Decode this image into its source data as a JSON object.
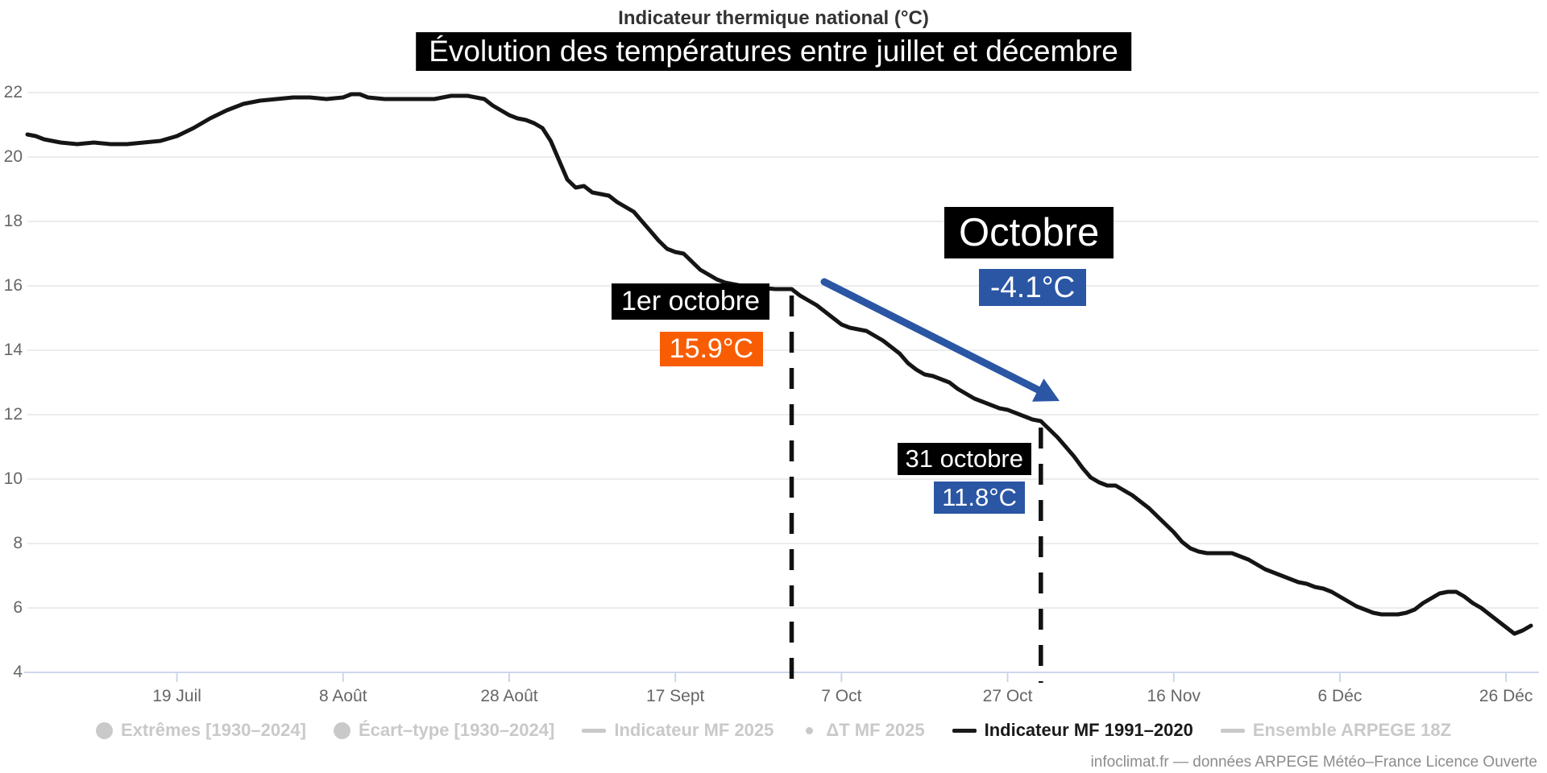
{
  "header": {
    "title": "Indicateur thermique national (°C)",
    "subtitle": "Évolution des températures entre juillet et décembre"
  },
  "credits": "infoclimat.fr — données ARPEGE Météo–France Licence Ouverte",
  "colors": {
    "accent_orange": "#f95d03",
    "accent_blue": "#2a56a4",
    "series_line": "#151515",
    "grid": "#e6e6e6",
    "axis": "#ccd6eb",
    "axis_label": "#666666",
    "legend_inactive": "#c9c9c9",
    "legend_active": "#1a1a1a",
    "annotation_bg": "#000000"
  },
  "annotations": {
    "oct1": {
      "label": "1er octobre",
      "value": "15.9°C",
      "date": "10-1",
      "value_num": 15.9
    },
    "october": {
      "label": "Octobre",
      "value": "-4.1°C",
      "delta_num": -4.1,
      "arrow": true
    },
    "oct31": {
      "label": "31 octobre",
      "value": "11.8°C",
      "date": "10-31",
      "value_num": 11.8
    }
  },
  "legend": {
    "items": [
      {
        "id": "extremes",
        "label": "Extrêmes [1930–2024]",
        "marker": "circle",
        "color": "#c9c9c9",
        "text_color": "#c9c9c9",
        "active": false
      },
      {
        "id": "ecart-type",
        "label": "Écart–type [1930–2024]",
        "marker": "circle",
        "color": "#c9c9c9",
        "text_color": "#c9c9c9",
        "active": false
      },
      {
        "id": "indicateur-mf-2025",
        "label": "Indicateur MF 2025",
        "marker": "line",
        "color": "#c9c9c9",
        "text_color": "#c9c9c9",
        "active": false
      },
      {
        "id": "delta-t-mf-2025",
        "label": "ΔT MF 2025",
        "marker": "dot",
        "color": "#c9c9c9",
        "text_color": "#c9c9c9",
        "active": false
      },
      {
        "id": "indicateur-mf-1991-2020",
        "label": "Indicateur MF 1991–2020",
        "marker": "line",
        "color": "#1a1a1a",
        "text_color": "#1a1a1a",
        "active": true
      },
      {
        "id": "ensemble-arpege-18z",
        "label": "Ensemble ARPEGE 18Z",
        "marker": "line",
        "color": "#c9c9c9",
        "text_color": "#c9c9c9",
        "active": false
      }
    ]
  },
  "chart_data": {
    "type": "line",
    "title": "Indicateur thermique national (°C)",
    "subtitle": "Évolution des températures entre juillet et décembre",
    "ylabel": "",
    "xlabel": "",
    "ylim": [
      4,
      22
    ],
    "yticks": [
      4,
      6,
      8,
      10,
      12,
      14,
      16,
      18,
      20,
      22
    ],
    "xticks": [
      {
        "label": "19 Juil",
        "date": "7-19"
      },
      {
        "label": "8 Août",
        "date": "8-8"
      },
      {
        "label": "28 Août",
        "date": "8-28"
      },
      {
        "label": "17 Sept",
        "date": "9-17"
      },
      {
        "label": "7 Oct",
        "date": "10-7"
      },
      {
        "label": "27 Oct",
        "date": "10-27"
      },
      {
        "label": "16 Nov",
        "date": "11-16"
      },
      {
        "label": "6 Déc",
        "date": "12-6"
      },
      {
        "label": "26 Déc",
        "date": "12-26"
      }
    ],
    "grid": true,
    "legend_position": "bottom",
    "series": [
      {
        "name": "Indicateur MF 1991–2020",
        "color": "#151515",
        "points": [
          [
            "7-1",
            20.7
          ],
          [
            "7-2",
            20.65
          ],
          [
            "7-3",
            20.55
          ],
          [
            "7-5",
            20.45
          ],
          [
            "7-7",
            20.4
          ],
          [
            "7-9",
            20.45
          ],
          [
            "7-11",
            20.4
          ],
          [
            "7-13",
            20.4
          ],
          [
            "7-15",
            20.45
          ],
          [
            "7-17",
            20.5
          ],
          [
            "7-19",
            20.65
          ],
          [
            "7-21",
            20.9
          ],
          [
            "7-23",
            21.2
          ],
          [
            "7-25",
            21.45
          ],
          [
            "7-27",
            21.65
          ],
          [
            "7-29",
            21.75
          ],
          [
            "7-31",
            21.8
          ],
          [
            "8-2",
            21.85
          ],
          [
            "8-4",
            21.85
          ],
          [
            "8-6",
            21.8
          ],
          [
            "8-8",
            21.85
          ],
          [
            "8-9",
            21.95
          ],
          [
            "8-10",
            21.95
          ],
          [
            "8-11",
            21.85
          ],
          [
            "8-13",
            21.8
          ],
          [
            "8-15",
            21.8
          ],
          [
            "8-17",
            21.8
          ],
          [
            "8-19",
            21.8
          ],
          [
            "8-21",
            21.9
          ],
          [
            "8-23",
            21.9
          ],
          [
            "8-24",
            21.85
          ],
          [
            "8-25",
            21.8
          ],
          [
            "8-26",
            21.6
          ],
          [
            "8-27",
            21.45
          ],
          [
            "8-28",
            21.3
          ],
          [
            "8-29",
            21.2
          ],
          [
            "8-30",
            21.15
          ],
          [
            "8-31",
            21.05
          ],
          [
            "9-1",
            20.9
          ],
          [
            "9-2",
            20.5
          ],
          [
            "9-3",
            19.9
          ],
          [
            "9-4",
            19.3
          ],
          [
            "9-5",
            19.05
          ],
          [
            "9-6",
            19.1
          ],
          [
            "9-7",
            18.9
          ],
          [
            "9-8",
            18.85
          ],
          [
            "9-9",
            18.8
          ],
          [
            "9-10",
            18.6
          ],
          [
            "9-11",
            18.45
          ],
          [
            "9-12",
            18.3
          ],
          [
            "9-13",
            18.0
          ],
          [
            "9-14",
            17.7
          ],
          [
            "9-15",
            17.4
          ],
          [
            "9-16",
            17.15
          ],
          [
            "9-17",
            17.05
          ],
          [
            "9-18",
            17.0
          ],
          [
            "9-19",
            16.75
          ],
          [
            "9-20",
            16.5
          ],
          [
            "9-21",
            16.35
          ],
          [
            "9-22",
            16.2
          ],
          [
            "9-23",
            16.1
          ],
          [
            "9-25",
            16.0
          ],
          [
            "9-27",
            15.95
          ],
          [
            "9-29",
            15.9
          ],
          [
            "10-1",
            15.9
          ],
          [
            "10-2",
            15.7
          ],
          [
            "10-3",
            15.55
          ],
          [
            "10-4",
            15.4
          ],
          [
            "10-5",
            15.2
          ],
          [
            "10-6",
            15.0
          ],
          [
            "10-7",
            14.8
          ],
          [
            "10-8",
            14.7
          ],
          [
            "10-9",
            14.65
          ],
          [
            "10-10",
            14.6
          ],
          [
            "10-11",
            14.45
          ],
          [
            "10-12",
            14.3
          ],
          [
            "10-13",
            14.1
          ],
          [
            "10-14",
            13.9
          ],
          [
            "10-15",
            13.6
          ],
          [
            "10-16",
            13.4
          ],
          [
            "10-17",
            13.25
          ],
          [
            "10-18",
            13.2
          ],
          [
            "10-19",
            13.1
          ],
          [
            "10-20",
            13.0
          ],
          [
            "10-21",
            12.8
          ],
          [
            "10-22",
            12.65
          ],
          [
            "10-23",
            12.5
          ],
          [
            "10-24",
            12.4
          ],
          [
            "10-25",
            12.3
          ],
          [
            "10-26",
            12.2
          ],
          [
            "10-27",
            12.15
          ],
          [
            "10-28",
            12.05
          ],
          [
            "10-29",
            11.95
          ],
          [
            "10-30",
            11.85
          ],
          [
            "10-31",
            11.8
          ],
          [
            "11-1",
            11.55
          ],
          [
            "11-2",
            11.3
          ],
          [
            "11-3",
            11.0
          ],
          [
            "11-4",
            10.7
          ],
          [
            "11-5",
            10.35
          ],
          [
            "11-6",
            10.05
          ],
          [
            "11-7",
            9.9
          ],
          [
            "11-8",
            9.8
          ],
          [
            "11-9",
            9.8
          ],
          [
            "11-10",
            9.65
          ],
          [
            "11-11",
            9.5
          ],
          [
            "11-12",
            9.3
          ],
          [
            "11-13",
            9.1
          ],
          [
            "11-14",
            8.85
          ],
          [
            "11-15",
            8.6
          ],
          [
            "11-16",
            8.35
          ],
          [
            "11-17",
            8.05
          ],
          [
            "11-18",
            7.85
          ],
          [
            "11-19",
            7.75
          ],
          [
            "11-20",
            7.7
          ],
          [
            "11-21",
            7.7
          ],
          [
            "11-22",
            7.7
          ],
          [
            "11-23",
            7.7
          ],
          [
            "11-24",
            7.6
          ],
          [
            "11-25",
            7.5
          ],
          [
            "11-26",
            7.35
          ],
          [
            "11-27",
            7.2
          ],
          [
            "11-28",
            7.1
          ],
          [
            "11-29",
            7.0
          ],
          [
            "11-30",
            6.9
          ],
          [
            "12-1",
            6.8
          ],
          [
            "12-2",
            6.75
          ],
          [
            "12-3",
            6.65
          ],
          [
            "12-4",
            6.6
          ],
          [
            "12-5",
            6.5
          ],
          [
            "12-6",
            6.35
          ],
          [
            "12-7",
            6.2
          ],
          [
            "12-8",
            6.05
          ],
          [
            "12-9",
            5.95
          ],
          [
            "12-10",
            5.85
          ],
          [
            "12-11",
            5.8
          ],
          [
            "12-12",
            5.8
          ],
          [
            "12-13",
            5.8
          ],
          [
            "12-14",
            5.85
          ],
          [
            "12-15",
            5.95
          ],
          [
            "12-16",
            6.15
          ],
          [
            "12-17",
            6.3
          ],
          [
            "12-18",
            6.45
          ],
          [
            "12-19",
            6.5
          ],
          [
            "12-20",
            6.5
          ],
          [
            "12-21",
            6.35
          ],
          [
            "12-22",
            6.15
          ],
          [
            "12-23",
            6.0
          ],
          [
            "12-24",
            5.8
          ],
          [
            "12-25",
            5.6
          ],
          [
            "12-26",
            5.4
          ],
          [
            "12-27",
            5.2
          ],
          [
            "12-28",
            5.3
          ],
          [
            "12-29",
            5.45
          ]
        ]
      }
    ]
  }
}
